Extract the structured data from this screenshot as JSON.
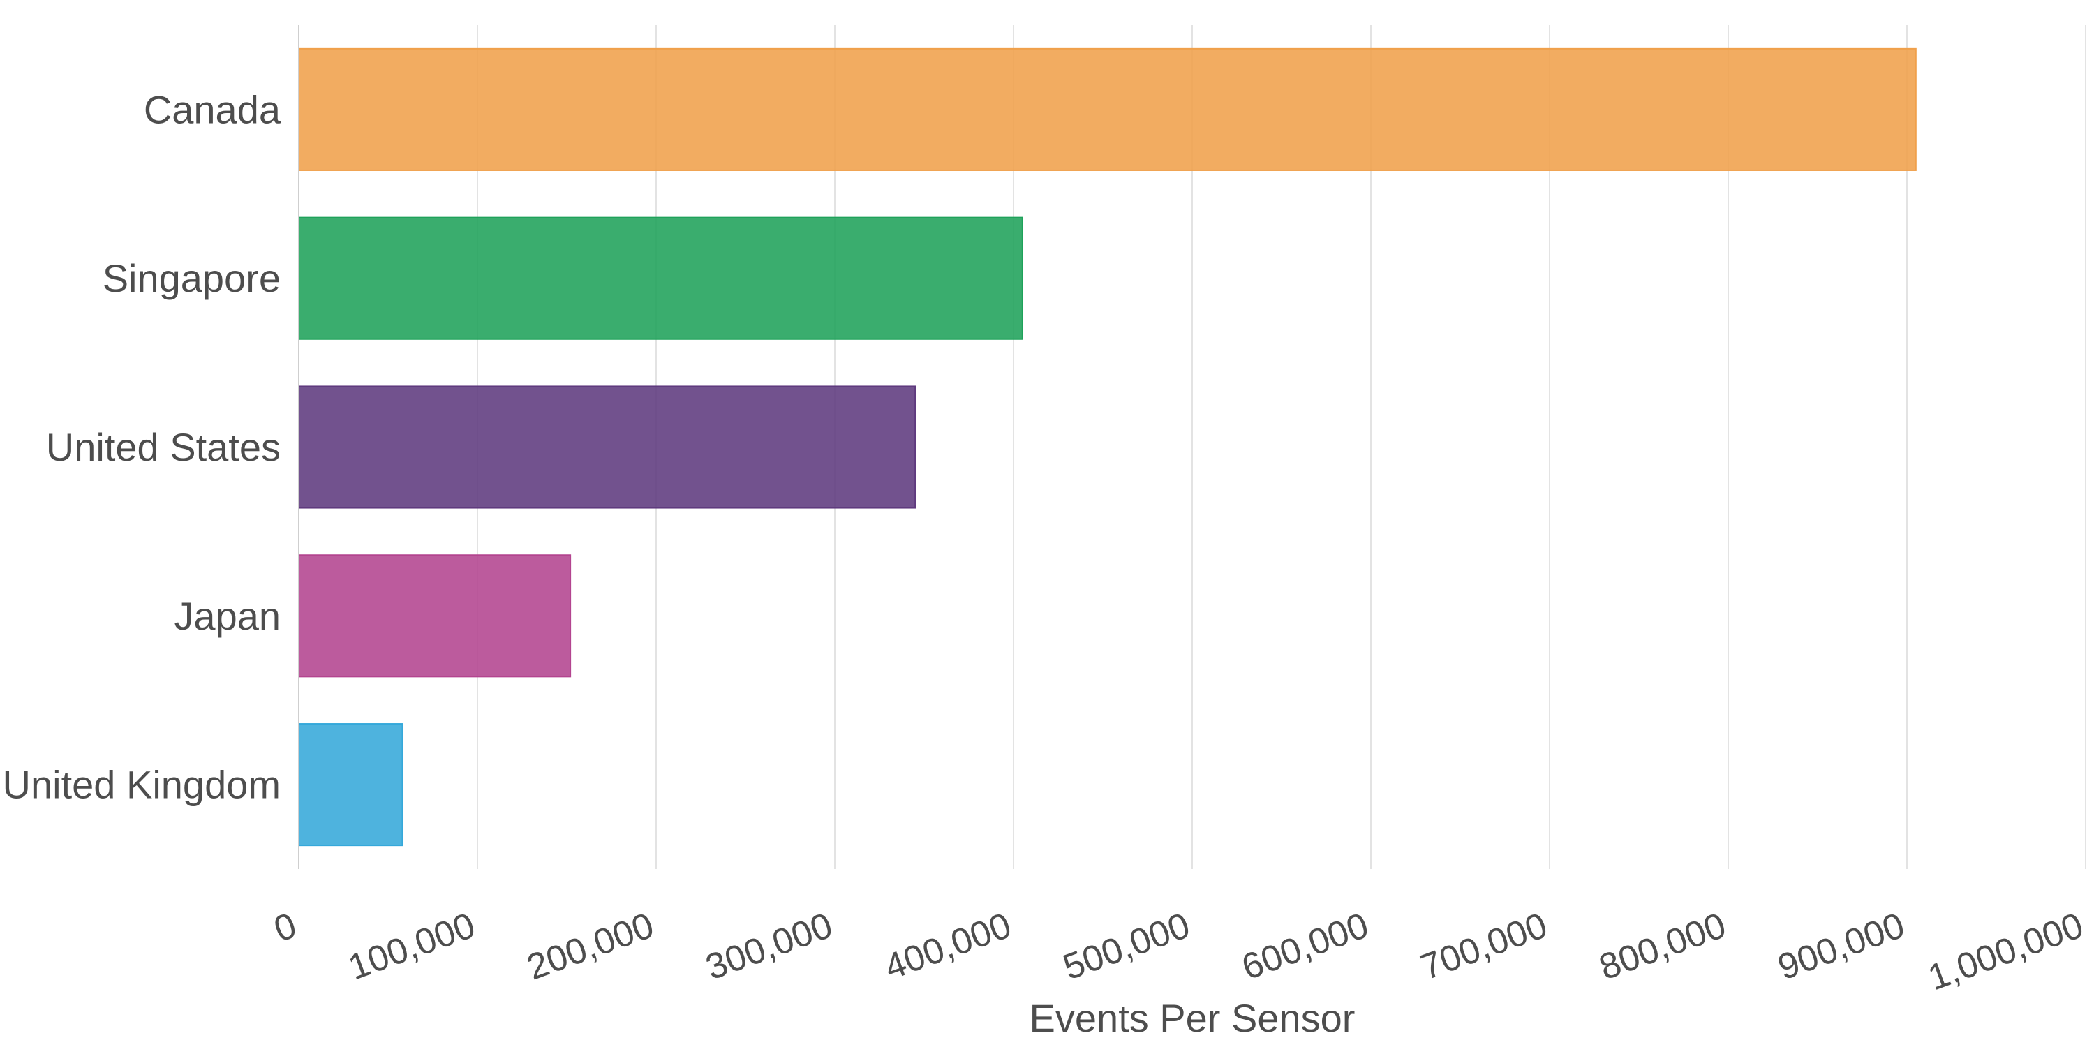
{
  "chart_data": {
    "type": "bar",
    "orientation": "horizontal",
    "categories": [
      "Canada",
      "Singapore",
      "United States",
      "Japan",
      "United Kingdom"
    ],
    "values": [
      905000,
      405000,
      345000,
      152000,
      58000
    ],
    "colors": [
      "#f0a04b",
      "#1fa25a",
      "#5f3a7e",
      "#b3448f",
      "#35a8da"
    ],
    "xlabel": "Events Per Sensor",
    "ylabel": "",
    "title": "",
    "xlim": [
      0,
      1000000
    ],
    "xticks": [
      0,
      100000,
      200000,
      300000,
      400000,
      500000,
      600000,
      700000,
      800000,
      900000,
      1000000
    ],
    "xtick_labels": [
      "0",
      "100,000",
      "200,000",
      "300,000",
      "400,000",
      "500,000",
      "600,000",
      "700,000",
      "800,000",
      "900,000",
      "1,000,000"
    ],
    "grid": true,
    "legend": "none"
  }
}
